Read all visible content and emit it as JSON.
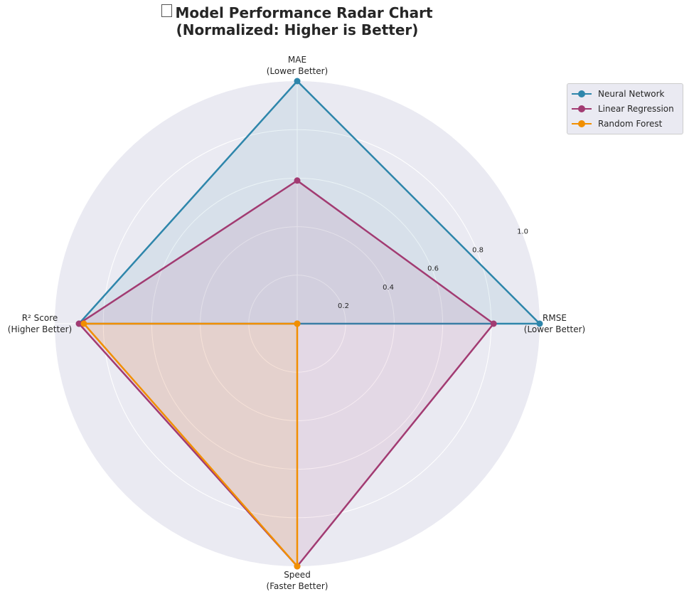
{
  "chart_data": {
    "type": "radar",
    "title_line1": "Model Performance Radar Chart",
    "title_line2": "(Normalized: Higher is Better)",
    "axes": [
      {
        "name": "RMSE",
        "note": "(Lower Better)"
      },
      {
        "name": "MAE",
        "note": "(Lower Better)"
      },
      {
        "name": "R² Score",
        "note": "(Higher Better)"
      },
      {
        "name": "Speed",
        "note": "(Faster Better)"
      }
    ],
    "r_ticks": [
      "0.2",
      "0.4",
      "0.6",
      "0.8",
      "1.0"
    ],
    "r_tick_values": [
      0.2,
      0.4,
      0.6,
      0.8,
      1.0
    ],
    "rlim": [
      0,
      1.0
    ],
    "grid": true,
    "legend_position": "upper-right",
    "series": [
      {
        "name": "Neural Network",
        "color": "#2e86ab",
        "values": [
          1.0,
          1.0,
          0.9,
          0.0
        ]
      },
      {
        "name": "Linear Regression",
        "color": "#a23b72",
        "values": [
          0.81,
          0.59,
          0.9,
          1.0
        ]
      },
      {
        "name": "Random Forest",
        "color": "#f18f01",
        "values": [
          0.0,
          0.0,
          0.88,
          1.0
        ]
      }
    ]
  }
}
